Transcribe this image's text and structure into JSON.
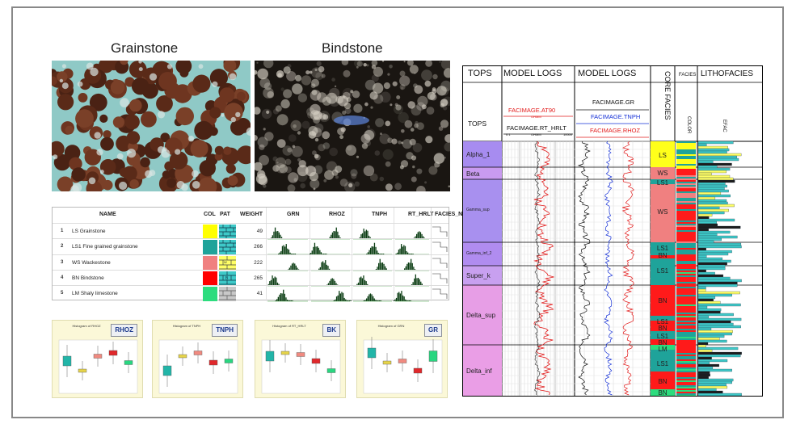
{
  "photos": {
    "left_title": "Grainstone",
    "right_title": "Bindstone"
  },
  "facies_table": {
    "headers": [
      "NAME",
      "COL",
      "PAT",
      "WEIGHT",
      "GRN",
      "RHOZ",
      "TNPH",
      "RT_HRLT",
      "FACIES_NAME_1"
    ],
    "rows": [
      {
        "num": "1",
        "name": "LS Grainstone",
        "color": "#ffff00",
        "pattern": "brick",
        "weight": "49"
      },
      {
        "num": "2",
        "name": "LS1 Fine grained grainstone",
        "color": "#1fa39a",
        "pattern": "brick",
        "weight": "266"
      },
      {
        "num": "3",
        "name": "WS Wackestone",
        "color": "#f08080",
        "pattern": "ws",
        "weight": "222"
      },
      {
        "num": "4",
        "name": "BN Bindstone",
        "color": "#ff0000",
        "pattern": "bn",
        "weight": "265"
      },
      {
        "num": "5",
        "name": "LM Shaly limestone",
        "color": "#2ddc7e",
        "pattern": "lm",
        "weight": "41"
      }
    ]
  },
  "histograms": [
    {
      "badge": "RHOZ",
      "title": "Histogram of RHOZ"
    },
    {
      "badge": "TNPH",
      "title": "Histogram of TNPH"
    },
    {
      "badge": "BK",
      "title": "Histogram of RT_HRLT"
    },
    {
      "badge": "GR",
      "title": "Histogram of GRN"
    }
  ],
  "log": {
    "headers": {
      "tops": "TOPS",
      "model1": "MODEL LOGS",
      "model2": "MODEL LOGS",
      "core": "CORE FACIES",
      "facies": "FACIES",
      "lithofacies": "LITHOFACIES",
      "tops_sub": "TOPS",
      "color": "COLOR",
      "efac": "EFAC"
    },
    "curves": {
      "at90": "FACIMAGE.AT90",
      "rt": "FACIMAGE.RT_HRLT",
      "ohmm1": "OHMM",
      "ohmm2": "OHMM",
      "scale_lo": "0.1",
      "scale_hi": "10000",
      "gr": "FACIMAGE.GR",
      "tnph": "FACIMAGE.TNPH",
      "rhoz": "FACIMAGE.RHOZ"
    },
    "tops": [
      {
        "name": "Alpha_1"
      },
      {
        "name": "Beta"
      },
      {
        "name": "Gamma_sup"
      },
      {
        "name": "Gamma_inf_2"
      },
      {
        "name": "Super_k"
      },
      {
        "name": "Delta_sup"
      },
      {
        "name": "Delta_inf"
      }
    ],
    "core_labels": [
      "LS",
      "WS",
      "LS1",
      "WS",
      "LS1",
      "BN",
      "LS1",
      "BN",
      "LS1",
      "BN",
      "LS1",
      "BN",
      "LM",
      "LS1",
      "BN",
      "BN"
    ]
  }
}
